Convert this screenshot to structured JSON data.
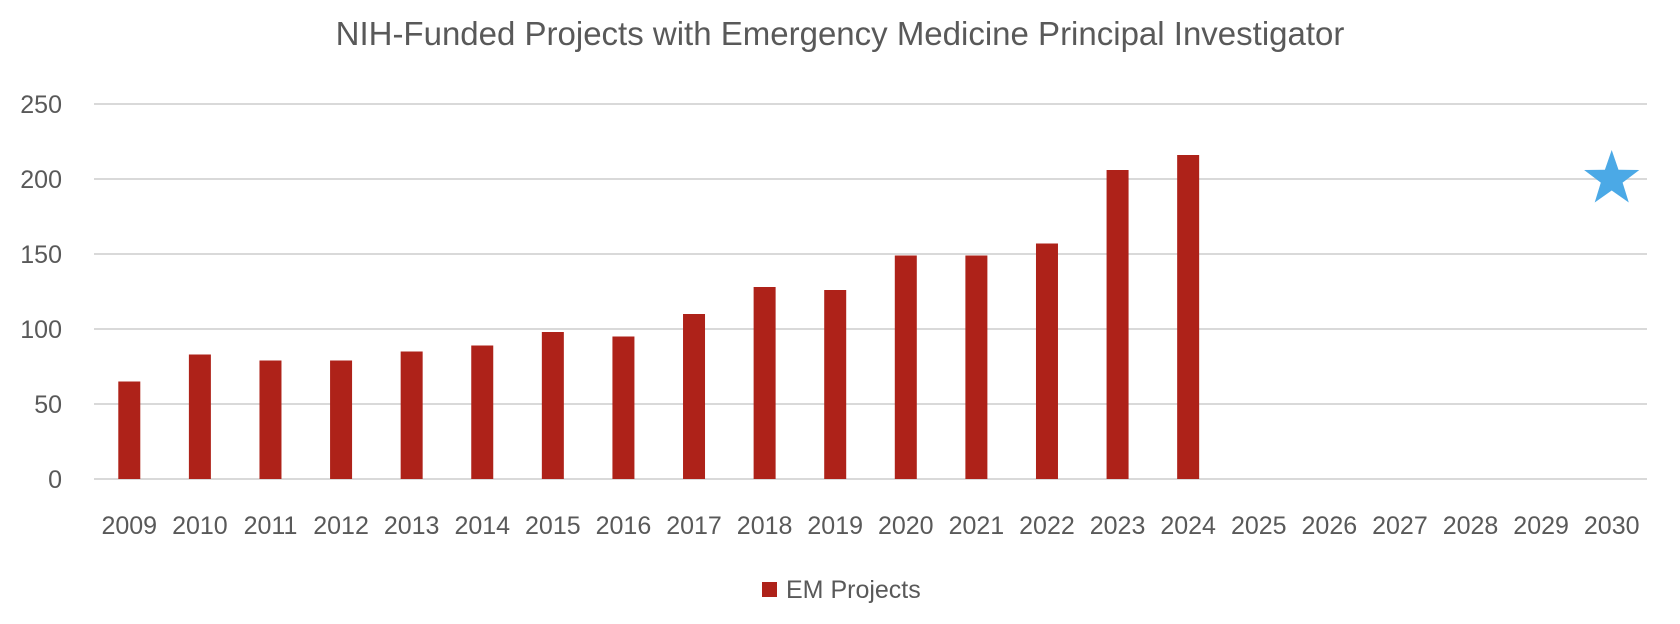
{
  "chart_data": {
    "type": "bar",
    "title": "NIH-Funded Projects with Emergency Medicine Principal Investigator",
    "xlabel": "",
    "ylabel": "",
    "ylim": [
      0,
      250
    ],
    "yticks": [
      0,
      50,
      100,
      150,
      200,
      250
    ],
    "grid": true,
    "legend_position": "bottom",
    "categories": [
      "2009",
      "2010",
      "2011",
      "2012",
      "2013",
      "2014",
      "2015",
      "2016",
      "2017",
      "2018",
      "2019",
      "2020",
      "2021",
      "2022",
      "2023",
      "2024",
      "2025",
      "2026",
      "2027",
      "2028",
      "2029",
      "2030"
    ],
    "series": [
      {
        "name": "EM Projects",
        "color": "#AE2219",
        "values": [
          65,
          83,
          79,
          79,
          85,
          89,
          98,
          95,
          110,
          128,
          126,
          149,
          149,
          157,
          206,
          216,
          null,
          null,
          null,
          null,
          null,
          null
        ]
      }
    ],
    "annotations": [
      {
        "type": "star-marker",
        "x": "2030",
        "y": 200,
        "color": "#4BA9E6"
      }
    ]
  }
}
